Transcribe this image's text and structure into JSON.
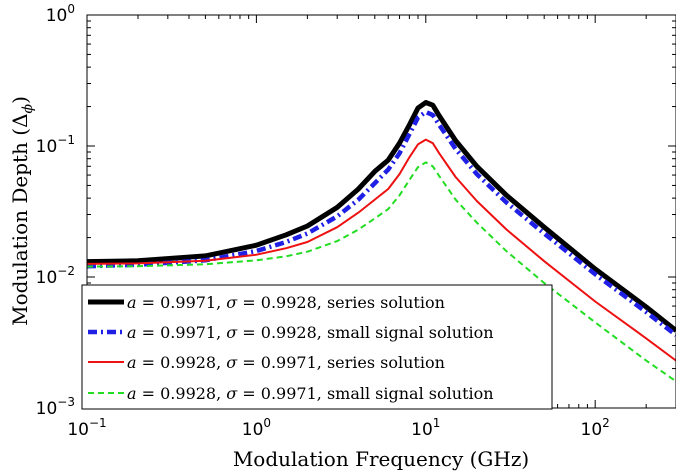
{
  "chart_data": {
    "type": "line",
    "xlabel": "Modulation Frequency (GHz)",
    "ylabel_main": "Modulation Depth (Δ",
    "ylabel_sub": "ϕ",
    "ylabel_close": ")",
    "x_scale": "log",
    "y_scale": "log",
    "xlim": [
      0.1,
      300
    ],
    "ylim": [
      0.001,
      1
    ],
    "grid": false,
    "legend_position": "bottom-left",
    "x_ticks": [
      {
        "value": 0.1,
        "base": "10",
        "exp": "−1"
      },
      {
        "value": 1,
        "base": "10",
        "exp": "0"
      },
      {
        "value": 10,
        "base": "10",
        "exp": "1"
      },
      {
        "value": 100,
        "base": "10",
        "exp": "2"
      }
    ],
    "y_ticks": [
      {
        "value": 0.001,
        "base": "10",
        "exp": "−3"
      },
      {
        "value": 0.01,
        "base": "10",
        "exp": "−2"
      },
      {
        "value": 0.1,
        "base": "10",
        "exp": "−1"
      },
      {
        "value": 1,
        "base": "10",
        "exp": "0"
      }
    ],
    "series": [
      {
        "label_a": "0.9971",
        "label_sigma": "0.9928",
        "label_kind": "series solution",
        "color": "#000000",
        "style": "solid-thick",
        "x": [
          0.1,
          0.2,
          0.5,
          1,
          1.5,
          2,
          3,
          4,
          5,
          6,
          7,
          8,
          9,
          10,
          11,
          12,
          15,
          20,
          30,
          50,
          100,
          200,
          300
        ],
        "y": [
          0.0131,
          0.0133,
          0.0145,
          0.0175,
          0.021,
          0.0245,
          0.034,
          0.047,
          0.064,
          0.078,
          0.105,
          0.145,
          0.195,
          0.215,
          0.205,
          0.17,
          0.11,
          0.07,
          0.042,
          0.024,
          0.0115,
          0.0059,
          0.0039
        ]
      },
      {
        "label_a": "0.9971",
        "label_sigma": "0.9928",
        "label_kind": "small signal solution",
        "color": "#1f1fe6",
        "style": "dash-dot-thick",
        "x": [
          0.1,
          0.2,
          0.5,
          1,
          1.5,
          2,
          3,
          4,
          5,
          6,
          7,
          8,
          9,
          10,
          11,
          12,
          15,
          20,
          30,
          50,
          100,
          200,
          300
        ],
        "y": [
          0.0121,
          0.0124,
          0.0134,
          0.0158,
          0.0185,
          0.0215,
          0.029,
          0.039,
          0.052,
          0.066,
          0.088,
          0.123,
          0.165,
          0.182,
          0.172,
          0.145,
          0.095,
          0.061,
          0.037,
          0.0215,
          0.0105,
          0.0054,
          0.0036
        ]
      },
      {
        "label_a": "0.9928",
        "label_sigma": "0.9971",
        "label_kind": "series solution",
        "color": "#ee1111",
        "style": "solid",
        "x": [
          0.1,
          0.2,
          0.5,
          1,
          1.5,
          2,
          3,
          4,
          5,
          6,
          7,
          8,
          9,
          10,
          11,
          12,
          15,
          20,
          30,
          50,
          100,
          200,
          300
        ],
        "y": [
          0.0126,
          0.0127,
          0.0133,
          0.0148,
          0.0166,
          0.0185,
          0.024,
          0.031,
          0.039,
          0.047,
          0.061,
          0.082,
          0.103,
          0.112,
          0.105,
          0.088,
          0.058,
          0.038,
          0.023,
          0.0132,
          0.0065,
          0.0034,
          0.0023
        ]
      },
      {
        "label_a": "0.9928",
        "label_sigma": "0.9971",
        "label_kind": "small signal solution",
        "color": "#22dd22",
        "style": "dashed",
        "x": [
          0.1,
          0.2,
          0.5,
          1,
          1.5,
          2,
          3,
          4,
          5,
          6,
          7,
          8,
          9,
          10,
          11,
          12,
          15,
          20,
          30,
          50,
          100,
          200,
          300
        ],
        "y": [
          0.012,
          0.0121,
          0.0125,
          0.0134,
          0.0144,
          0.0156,
          0.0188,
          0.023,
          0.028,
          0.033,
          0.042,
          0.055,
          0.069,
          0.075,
          0.07,
          0.059,
          0.039,
          0.026,
          0.0157,
          0.009,
          0.0045,
          0.0023,
          0.0016
        ]
      }
    ]
  }
}
